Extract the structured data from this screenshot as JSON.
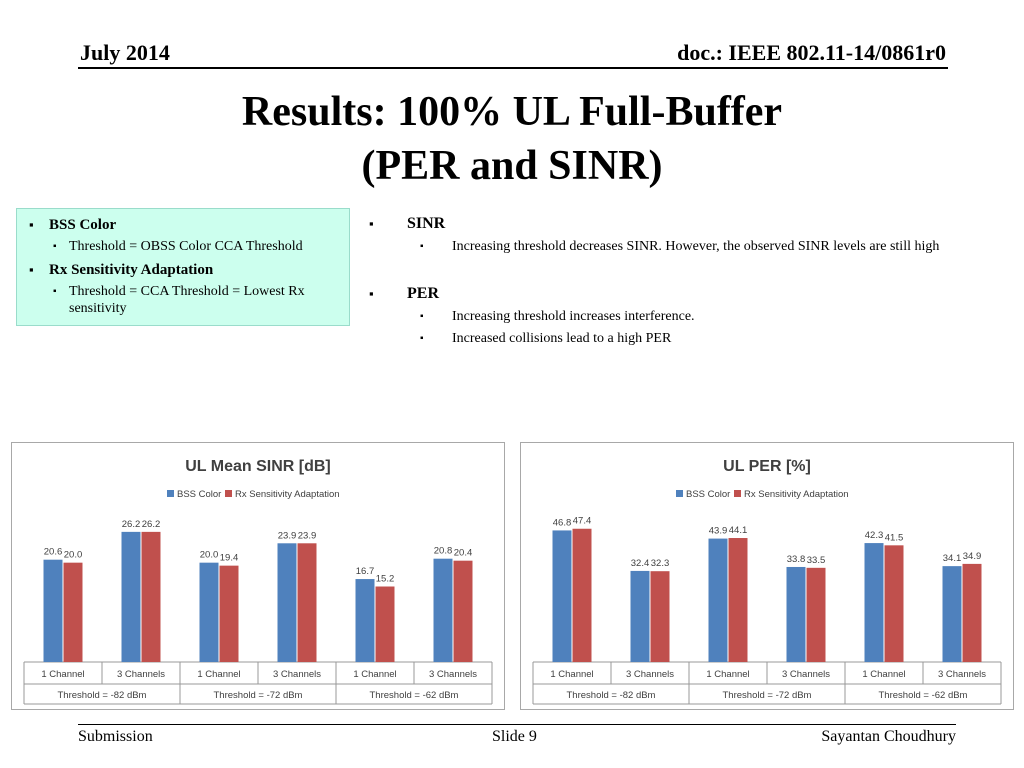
{
  "header": {
    "date": "July 2014",
    "doc": "doc.: IEEE 802.11-14/0861r0"
  },
  "title": {
    "line1": "Results: 100% UL Full-Buffer",
    "line2": "(PER and SINR)"
  },
  "left_box": {
    "items": [
      {
        "label": "BSS Color",
        "sub": [
          "Threshold = OBSS Color CCA Threshold"
        ]
      },
      {
        "label": "Rx Sensitivity Adaptation",
        "sub": [
          "Threshold = CCA Threshold = Lowest Rx sensitivity"
        ]
      }
    ]
  },
  "right_list": {
    "items": [
      {
        "label": "SINR",
        "sub": [
          "Increasing threshold decreases SINR. However, the observed SINR levels are still high"
        ]
      },
      {
        "label": "PER",
        "sub": [
          "Increasing threshold increases interference.",
          "Increased collisions lead to a high PER"
        ]
      }
    ]
  },
  "chart_data": [
    {
      "type": "bar",
      "title": "UL Mean SINR [dB]",
      "legend_position": "top",
      "grid": false,
      "categories": [
        "1 Channel",
        "3 Channels",
        "1 Channel",
        "3 Channels",
        "1 Channel",
        "3 Channels"
      ],
      "groups": [
        "Threshold = -82 dBm",
        "Threshold = -72 dBm",
        "Threshold = -62 dBm"
      ],
      "series": [
        {
          "name": "BSS Color",
          "color": "#4f81bd",
          "values": [
            20.6,
            26.2,
            20.0,
            23.9,
            16.7,
            20.8
          ]
        },
        {
          "name": "Rx Sensitivity Adaptation",
          "color": "#c0504d",
          "values": [
            20.0,
            26.2,
            19.4,
            23.9,
            15.2,
            20.4
          ]
        }
      ],
      "ylim": [
        0,
        30
      ]
    },
    {
      "type": "bar",
      "title": "UL PER [%]",
      "legend_position": "top",
      "grid": false,
      "categories": [
        "1 Channel",
        "3 Channels",
        "1 Channel",
        "3 Channels",
        "1 Channel",
        "3 Channels"
      ],
      "groups": [
        "Threshold = -82 dBm",
        "Threshold = -72 dBm",
        "Threshold = -62 dBm"
      ],
      "series": [
        {
          "name": "BSS Color",
          "color": "#4f81bd",
          "values": [
            46.8,
            32.4,
            43.9,
            33.8,
            42.3,
            34.1
          ]
        },
        {
          "name": "Rx Sensitivity Adaptation",
          "color": "#c0504d",
          "values": [
            47.4,
            32.3,
            44.1,
            33.5,
            41.5,
            34.9
          ]
        }
      ],
      "ylim": [
        0,
        53
      ]
    }
  ],
  "footer": {
    "left": "Submission",
    "center": "Slide 9",
    "right": "Sayantan Choudhury"
  }
}
